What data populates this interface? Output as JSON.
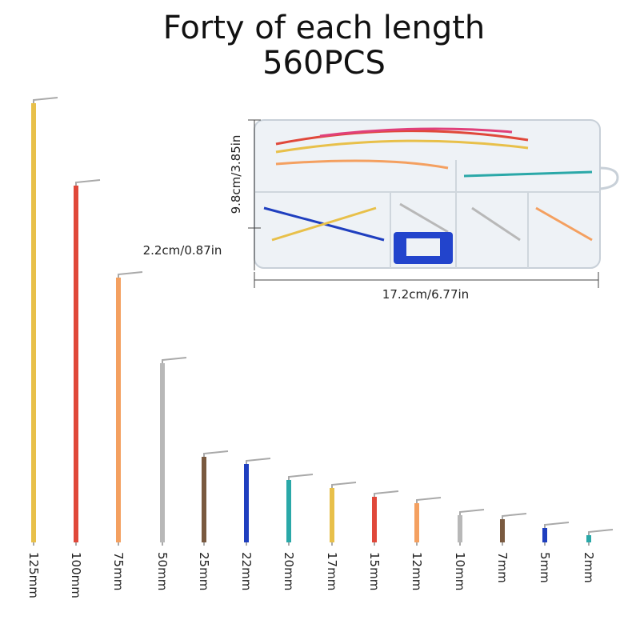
{
  "header": {
    "title": "Forty of each length",
    "subtitle": "560PCS"
  },
  "box": {
    "height_label": "9.8cm/3.85in",
    "depth_label": "2.2cm/0.87in",
    "width_label": "17.2cm/6.77in"
  },
  "wires": [
    {
      "label": "125mm",
      "color": "#e8c04a"
    },
    {
      "label": "100mm",
      "color": "#e0483a"
    },
    {
      "label": "75mm",
      "color": "#f4a060"
    },
    {
      "label": "50mm",
      "color": "#b8b8b8"
    },
    {
      "label": "25mm",
      "color": "#7a5a40"
    },
    {
      "label": "22mm",
      "color": "#1f3fbf"
    },
    {
      "label": "20mm",
      "color": "#2aa8a8"
    },
    {
      "label": "17mm",
      "color": "#e8c04a"
    },
    {
      "label": "15mm",
      "color": "#e0483a"
    },
    {
      "label": "12mm",
      "color": "#f4a060"
    },
    {
      "label": "10mm",
      "color": "#b8b8b8"
    },
    {
      "label": "7mm",
      "color": "#7a5a40"
    },
    {
      "label": "5mm",
      "color": "#1f3fbf"
    },
    {
      "label": "2mm",
      "color": "#2aa8a8"
    }
  ]
}
